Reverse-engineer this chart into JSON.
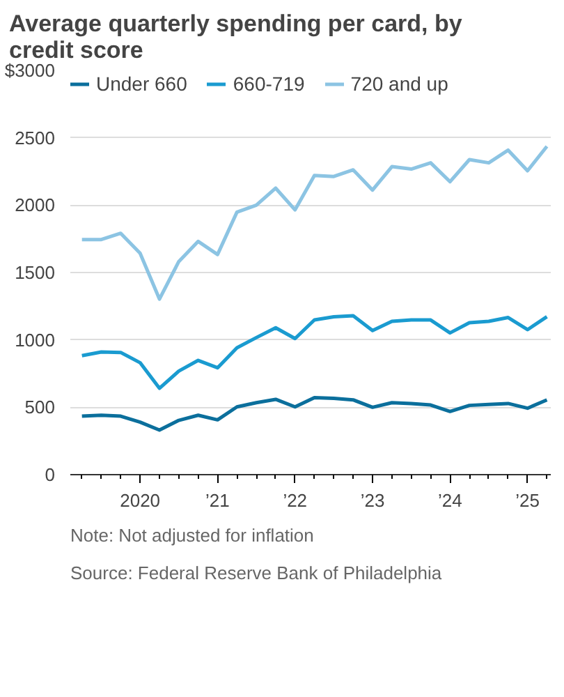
{
  "chart_data": {
    "type": "line",
    "title": "Average quarterly spending per card, by credit score",
    "x": [
      2019.25,
      2019.5,
      2019.75,
      2020.0,
      2020.25,
      2020.5,
      2020.75,
      2021.0,
      2021.25,
      2021.5,
      2021.75,
      2022.0,
      2022.25,
      2022.5,
      2022.75,
      2023.0,
      2023.25,
      2023.5,
      2023.75,
      2024.0,
      2024.25,
      2024.5,
      2024.75,
      2025.0,
      2025.25
    ],
    "series": [
      {
        "name": "Under 660",
        "color": "#0b6f9c",
        "values": [
          434,
          441,
          434,
          390,
          331,
          403,
          441,
          407,
          503,
          534,
          559,
          503,
          572,
          566,
          555,
          500,
          534,
          528,
          517,
          469,
          514,
          521,
          528,
          493,
          555
        ]
      },
      {
        "name": "660-719",
        "color": "#1a9bd0",
        "values": [
          883,
          910,
          907,
          831,
          641,
          769,
          848,
          793,
          941,
          1017,
          1090,
          1010,
          1148,
          1172,
          1179,
          1069,
          1138,
          1148,
          1148,
          1052,
          1128,
          1138,
          1166,
          1076,
          1172
        ]
      },
      {
        "name": "720 and up",
        "color": "#8cc4e3",
        "values": [
          1745,
          1745,
          1791,
          1644,
          1303,
          1582,
          1731,
          1634,
          1948,
          2000,
          2126,
          1965,
          2220,
          2213,
          2262,
          2112,
          2286,
          2268,
          2314,
          2174,
          2338,
          2314,
          2408,
          2255,
          2436
        ]
      }
    ],
    "xlim": [
      2019.1,
      2025.3
    ],
    "xticks": [
      {
        "value": 2019.25,
        "label": null
      },
      {
        "value": 2019.5,
        "label": null
      },
      {
        "value": 2019.75,
        "label": null
      },
      {
        "value": 2020.0,
        "label": "2020"
      },
      {
        "value": 2020.25,
        "label": null
      },
      {
        "value": 2020.5,
        "label": null
      },
      {
        "value": 2020.75,
        "label": null
      },
      {
        "value": 2021.0,
        "label": "’21"
      },
      {
        "value": 2021.25,
        "label": null
      },
      {
        "value": 2021.5,
        "label": null
      },
      {
        "value": 2021.75,
        "label": null
      },
      {
        "value": 2022.0,
        "label": "’22"
      },
      {
        "value": 2022.25,
        "label": null
      },
      {
        "value": 2022.5,
        "label": null
      },
      {
        "value": 2022.75,
        "label": null
      },
      {
        "value": 2023.0,
        "label": "’23"
      },
      {
        "value": 2023.25,
        "label": null
      },
      {
        "value": 2023.5,
        "label": null
      },
      {
        "value": 2023.75,
        "label": null
      },
      {
        "value": 2024.0,
        "label": "’24"
      },
      {
        "value": 2024.25,
        "label": null
      },
      {
        "value": 2024.5,
        "label": null
      },
      {
        "value": 2024.75,
        "label": null
      },
      {
        "value": 2025.0,
        "label": "’25"
      },
      {
        "value": 2025.25,
        "label": null
      }
    ],
    "ylim": [
      0,
      3000
    ],
    "yticks": [
      0,
      500,
      1000,
      1500,
      2000,
      2500,
      {
        "value": 3000,
        "label": "$3000"
      }
    ],
    "grid": "y",
    "legend": "top left",
    "marker": "none",
    "line_style": "solid",
    "annotations": [
      "Note: Not adjusted for inflation",
      "Source: Federal Reserve Bank of Philadelphia"
    ]
  }
}
